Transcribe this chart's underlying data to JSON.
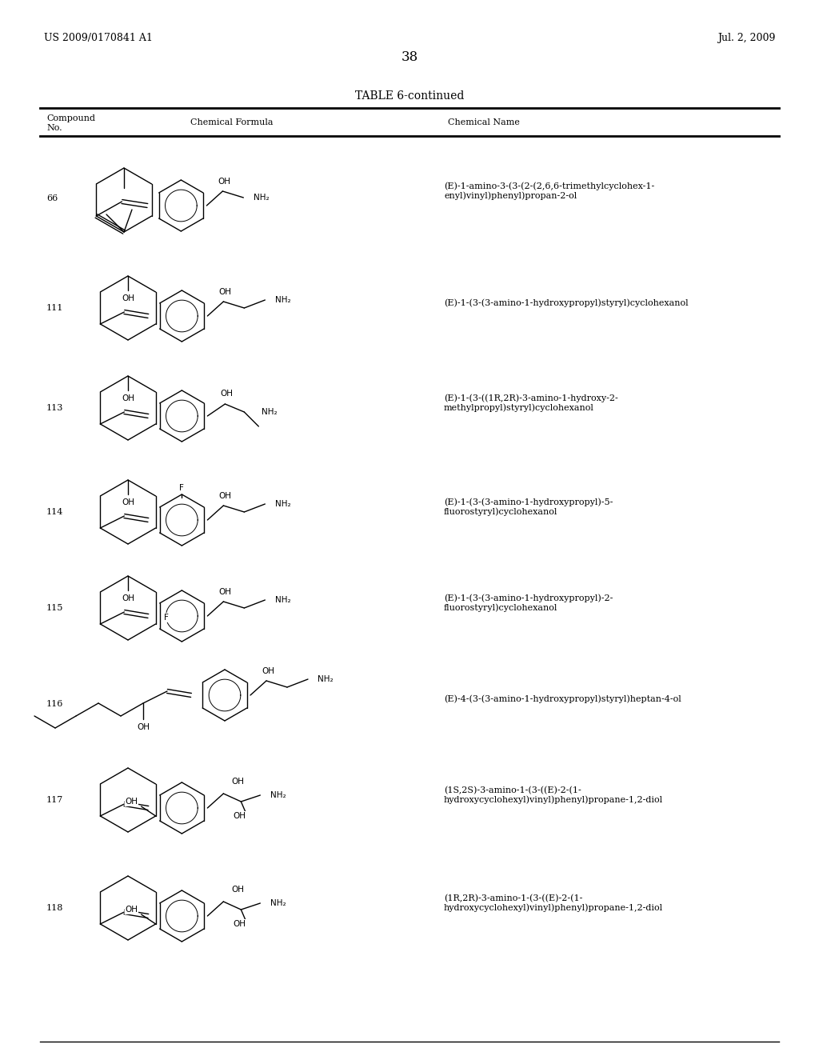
{
  "background_color": "#ffffff",
  "header_left": "US 2009/0170841 A1",
  "header_right": "Jul. 2, 2009",
  "page_number": "38",
  "table_title": "TABLE 6-continued",
  "compounds": [
    {
      "no": "66",
      "name": "(E)-1-amino-3-(3-(2-(2,6,6-trimethylcyclohex-1-\nenyl)vinyl)phenyl)propan-2-ol"
    },
    {
      "no": "111",
      "name": "(E)-1-(3-(3-amino-1-hydroxypropyl)styryl)cyclohexanol"
    },
    {
      "no": "113",
      "name": "(E)-1-(3-((1R,2R)-3-amino-1-hydroxy-2-\nmethylpropyl)styryl)cyclohexanol"
    },
    {
      "no": "114",
      "name": "(E)-1-(3-(3-amino-1-hydroxypropyl)-5-\nfluorostyryl)cyclohexanol"
    },
    {
      "no": "115",
      "name": "(E)-1-(3-(3-amino-1-hydroxypropyl)-2-\nfluorostyryl)cyclohexanol"
    },
    {
      "no": "116",
      "name": "(E)-4-(3-(3-amino-1-hydroxypropyl)styryl)heptan-4-ol"
    },
    {
      "no": "117",
      "name": "(1S,2S)-3-amino-1-(3-((E)-2-(1-\nhydroxycyclohexyl)vinyl)phenyl)propane-1,2-diol"
    },
    {
      "no": "118",
      "name": "(1R,2R)-3-amino-1-(3-((E)-2-(1-\nhydroxycyclohexyl)vinyl)phenyl)propane-1,2-diol"
    }
  ]
}
